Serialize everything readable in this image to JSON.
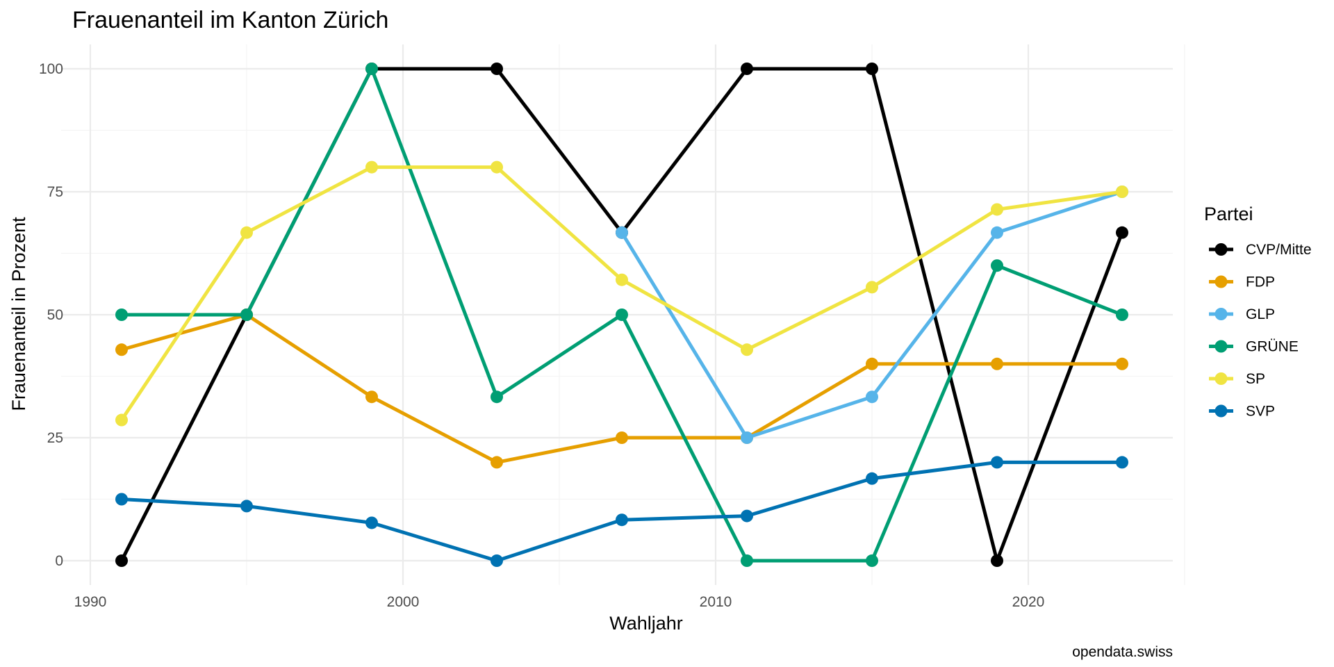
{
  "chart_data": {
    "type": "line",
    "title": "Frauenanteil im Kanton Zürich",
    "xlabel": "Wahljahr",
    "ylabel": "Frauenanteil in Prozent",
    "caption": "opendata.swiss",
    "legend_title": "Partei",
    "legend_position": "right",
    "grid": true,
    "xlim": [
      1990,
      2023
    ],
    "ylim": [
      0,
      100
    ],
    "x_ticks": [
      1990,
      2000,
      2010,
      2020
    ],
    "y_ticks": [
      0,
      25,
      50,
      75,
      100
    ],
    "series": [
      {
        "name": "CVP/Mitte",
        "color": "#000000",
        "x": [
          1991,
          1995,
          1999,
          2003,
          2007,
          2011,
          2015,
          2019,
          2023
        ],
        "y": [
          0,
          50,
          100,
          100,
          66.7,
          100,
          100,
          0,
          66.7
        ]
      },
      {
        "name": "FDP",
        "color": "#E69F00",
        "x": [
          1991,
          1995,
          1999,
          2003,
          2007,
          2011,
          2015,
          2019,
          2023
        ],
        "y": [
          42.9,
          50,
          33.3,
          20,
          25,
          25,
          40,
          40,
          40
        ]
      },
      {
        "name": "GLP",
        "color": "#56B4E9",
        "x": [
          2007,
          2011,
          2015,
          2019,
          2023
        ],
        "y": [
          66.7,
          25,
          33.3,
          66.7,
          75
        ]
      },
      {
        "name": "GRÜNE",
        "color": "#009E73",
        "x": [
          1991,
          1995,
          1999,
          2003,
          2007,
          2011,
          2015,
          2019,
          2023
        ],
        "y": [
          50,
          50,
          100,
          33.3,
          50,
          0,
          0,
          60,
          50
        ]
      },
      {
        "name": "SP",
        "color": "#F0E442",
        "x": [
          1991,
          1995,
          1999,
          2003,
          2007,
          2011,
          2015,
          2019,
          2023
        ],
        "y": [
          28.6,
          66.7,
          80,
          80,
          57.1,
          42.9,
          55.6,
          71.4,
          75
        ]
      },
      {
        "name": "SVP",
        "color": "#0072B2",
        "x": [
          1991,
          1995,
          1999,
          2003,
          2007,
          2011,
          2015,
          2019,
          2023
        ],
        "y": [
          12.5,
          11.1,
          7.7,
          0,
          8.3,
          9.1,
          16.7,
          20,
          20
        ]
      }
    ]
  }
}
